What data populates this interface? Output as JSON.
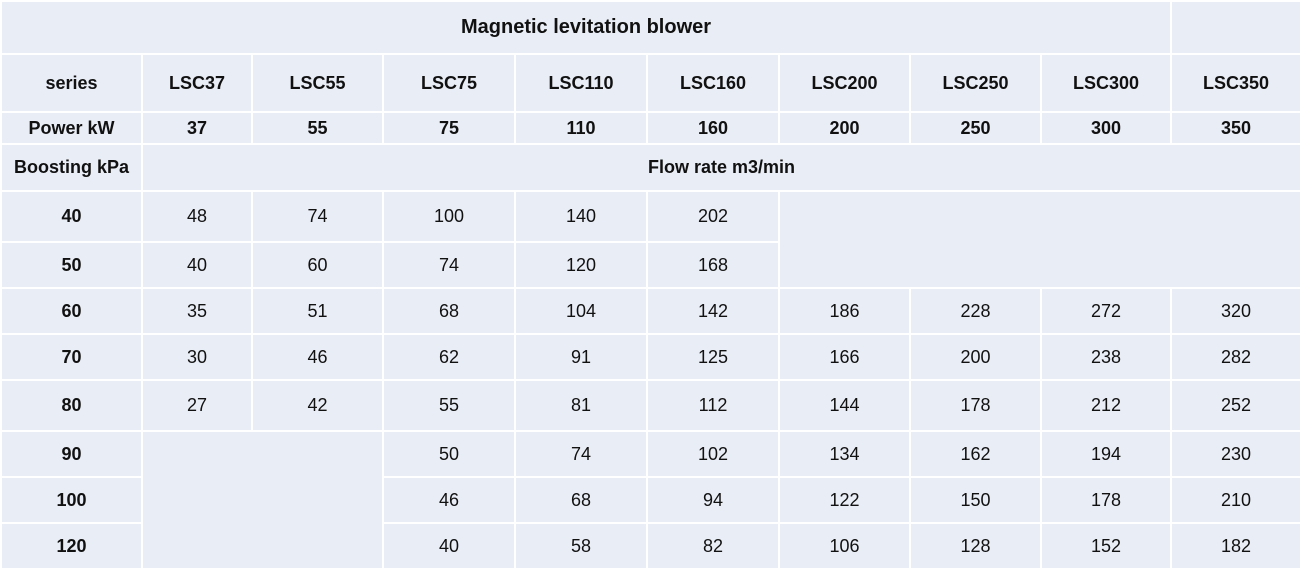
{
  "title": "Magnetic levitation blower",
  "series_label": "series",
  "power_label": "Power kW",
  "boost_label": "Boosting kPa",
  "flow_label": "Flow rate m3/min",
  "models": [
    {
      "name": "LSC37",
      "power": "37"
    },
    {
      "name": "LSC55",
      "power": "55"
    },
    {
      "name": "LSC75",
      "power": "75"
    },
    {
      "name": "LSC110",
      "power": "110"
    },
    {
      "name": "LSC160",
      "power": "160"
    },
    {
      "name": "LSC200",
      "power": "200"
    },
    {
      "name": "LSC250",
      "power": "250"
    },
    {
      "name": "LSC300",
      "power": "300"
    },
    {
      "name": "LSC350",
      "power": "350"
    }
  ],
  "rows": [
    {
      "boost": "40",
      "values": [
        "48",
        "74",
        "100",
        "140",
        "202",
        "",
        "",
        "",
        ""
      ]
    },
    {
      "boost": "50",
      "values": [
        "40",
        "60",
        "74",
        "120",
        "168",
        "",
        "",
        "",
        ""
      ]
    },
    {
      "boost": "60",
      "values": [
        "35",
        "51",
        "68",
        "104",
        "142",
        "186",
        "228",
        "272",
        "320"
      ]
    },
    {
      "boost": "70",
      "values": [
        "30",
        "46",
        "62",
        "91",
        "125",
        "166",
        "200",
        "238",
        "282"
      ]
    },
    {
      "boost": "80",
      "values": [
        "27",
        "42",
        "55",
        "81",
        "112",
        "144",
        "178",
        "212",
        "252"
      ]
    },
    {
      "boost": "90",
      "values": [
        "",
        "",
        "50",
        "74",
        "102",
        "134",
        "162",
        "194",
        "230"
      ]
    },
    {
      "boost": "100",
      "values": [
        "",
        "",
        "46",
        "68",
        "94",
        "122",
        "150",
        "178",
        "210"
      ]
    },
    {
      "boost": "120",
      "values": [
        "",
        "",
        "40",
        "58",
        "82",
        "106",
        "128",
        "152",
        "182"
      ]
    }
  ]
}
